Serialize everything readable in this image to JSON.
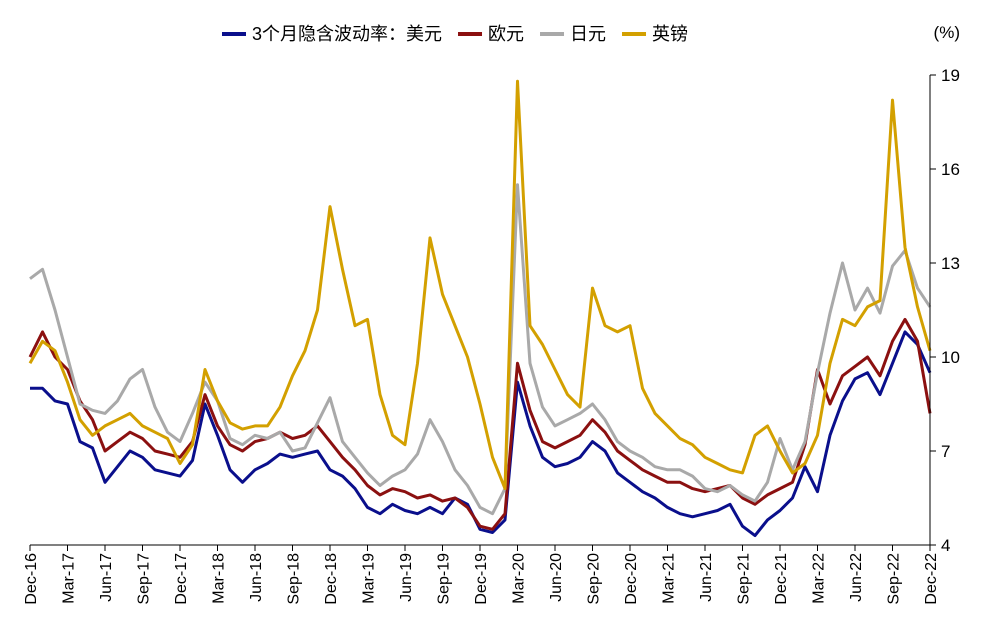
{
  "chart_data": {
    "type": "line",
    "title": "",
    "xlabel": "",
    "ylabel": "",
    "unit_label": "(%)",
    "y_axis_position": "right",
    "ylim": [
      4,
      19
    ],
    "y_ticks": [
      4,
      7,
      10,
      13,
      16,
      19
    ],
    "x_range": [
      "2016-12",
      "2022-12"
    ],
    "x_tick_labels": [
      "Dec-16",
      "Mar-17",
      "Jun-17",
      "Sep-17",
      "Dec-17",
      "Mar-18",
      "Jun-18",
      "Sep-18",
      "Dec-18",
      "Mar-19",
      "Jun-19",
      "Sep-19",
      "Dec-19",
      "Mar-20",
      "Jun-20",
      "Sep-20",
      "Dec-20",
      "Mar-21",
      "Jun-21",
      "Sep-21",
      "Dec-21",
      "Mar-22",
      "Jun-22",
      "Sep-22",
      "Dec-22"
    ],
    "legend_position": "top",
    "grid": false,
    "series": [
      {
        "name": "3个月隐含波动率：美元",
        "color": "#0a0f8c",
        "x": [
          "2016-12",
          "2017-01",
          "2017-02",
          "2017-03",
          "2017-04",
          "2017-05",
          "2017-06",
          "2017-07",
          "2017-08",
          "2017-09",
          "2017-10",
          "2017-11",
          "2017-12",
          "2018-01",
          "2018-02",
          "2018-03",
          "2018-04",
          "2018-05",
          "2018-06",
          "2018-07",
          "2018-08",
          "2018-09",
          "2018-10",
          "2018-11",
          "2018-12",
          "2019-01",
          "2019-02",
          "2019-03",
          "2019-04",
          "2019-05",
          "2019-06",
          "2019-07",
          "2019-08",
          "2019-09",
          "2019-10",
          "2019-11",
          "2019-12",
          "2020-01",
          "2020-02",
          "2020-03",
          "2020-04",
          "2020-05",
          "2020-06",
          "2020-07",
          "2020-08",
          "2020-09",
          "2020-10",
          "2020-11",
          "2020-12",
          "2021-01",
          "2021-02",
          "2021-03",
          "2021-04",
          "2021-05",
          "2021-06",
          "2021-07",
          "2021-08",
          "2021-09",
          "2021-10",
          "2021-11",
          "2021-12",
          "2022-01",
          "2022-02",
          "2022-03",
          "2022-04",
          "2022-05",
          "2022-06",
          "2022-07",
          "2022-08",
          "2022-09",
          "2022-10",
          "2022-11",
          "2022-12"
        ],
        "values": [
          9.0,
          9.0,
          8.6,
          8.5,
          7.3,
          7.1,
          6.0,
          6.5,
          7.0,
          6.8,
          6.4,
          6.3,
          6.2,
          6.7,
          8.5,
          7.5,
          6.4,
          6.0,
          6.4,
          6.6,
          6.9,
          6.8,
          6.9,
          7.0,
          6.4,
          6.2,
          5.8,
          5.2,
          5.0,
          5.3,
          5.1,
          5.0,
          5.2,
          5.0,
          5.5,
          5.3,
          4.5,
          4.4,
          4.8,
          9.2,
          7.8,
          6.8,
          6.5,
          6.6,
          6.8,
          7.3,
          7.0,
          6.3,
          6.0,
          5.7,
          5.5,
          5.2,
          5.0,
          4.9,
          5.0,
          5.1,
          5.3,
          4.6,
          4.3,
          4.8,
          5.1,
          5.5,
          6.5,
          5.7,
          7.5,
          8.6,
          9.3,
          9.5,
          8.8,
          9.8,
          10.8,
          10.4,
          9.5
        ]
      },
      {
        "name": "欧元",
        "color": "#8b1010",
        "x": [
          "2016-12",
          "2017-01",
          "2017-02",
          "2017-03",
          "2017-04",
          "2017-05",
          "2017-06",
          "2017-07",
          "2017-08",
          "2017-09",
          "2017-10",
          "2017-11",
          "2017-12",
          "2018-01",
          "2018-02",
          "2018-03",
          "2018-04",
          "2018-05",
          "2018-06",
          "2018-07",
          "2018-08",
          "2018-09",
          "2018-10",
          "2018-11",
          "2018-12",
          "2019-01",
          "2019-02",
          "2019-03",
          "2019-04",
          "2019-05",
          "2019-06",
          "2019-07",
          "2019-08",
          "2019-09",
          "2019-10",
          "2019-11",
          "2019-12",
          "2020-01",
          "2020-02",
          "2020-03",
          "2020-04",
          "2020-05",
          "2020-06",
          "2020-07",
          "2020-08",
          "2020-09",
          "2020-10",
          "2020-11",
          "2020-12",
          "2021-01",
          "2021-02",
          "2021-03",
          "2021-04",
          "2021-05",
          "2021-06",
          "2021-07",
          "2021-08",
          "2021-09",
          "2021-10",
          "2021-11",
          "2021-12",
          "2022-01",
          "2022-02",
          "2022-03",
          "2022-04",
          "2022-05",
          "2022-06",
          "2022-07",
          "2022-08",
          "2022-09",
          "2022-10",
          "2022-11",
          "2022-12"
        ],
        "values": [
          10.0,
          10.8,
          10.0,
          9.6,
          8.6,
          8.0,
          7.0,
          7.3,
          7.6,
          7.4,
          7.0,
          6.9,
          6.8,
          7.3,
          8.8,
          7.8,
          7.2,
          7.0,
          7.3,
          7.4,
          7.6,
          7.4,
          7.5,
          7.8,
          7.3,
          6.8,
          6.4,
          5.9,
          5.6,
          5.8,
          5.7,
          5.5,
          5.6,
          5.4,
          5.5,
          5.2,
          4.6,
          4.5,
          5.0,
          9.8,
          8.3,
          7.3,
          7.1,
          7.3,
          7.5,
          8.0,
          7.6,
          7.0,
          6.7,
          6.4,
          6.2,
          6.0,
          6.0,
          5.8,
          5.7,
          5.8,
          5.9,
          5.5,
          5.3,
          5.6,
          5.8,
          6.0,
          7.2,
          9.6,
          8.5,
          9.4,
          9.7,
          10.0,
          9.4,
          10.5,
          11.2,
          10.5,
          8.2
        ]
      },
      {
        "name": "日元",
        "color": "#a9a9a9",
        "x": [
          "2016-12",
          "2017-01",
          "2017-02",
          "2017-03",
          "2017-04",
          "2017-05",
          "2017-06",
          "2017-07",
          "2017-08",
          "2017-09",
          "2017-10",
          "2017-11",
          "2017-12",
          "2018-01",
          "2018-02",
          "2018-03",
          "2018-04",
          "2018-05",
          "2018-06",
          "2018-07",
          "2018-08",
          "2018-09",
          "2018-10",
          "2018-11",
          "2018-12",
          "2019-01",
          "2019-02",
          "2019-03",
          "2019-04",
          "2019-05",
          "2019-06",
          "2019-07",
          "2019-08",
          "2019-09",
          "2019-10",
          "2019-11",
          "2019-12",
          "2020-01",
          "2020-02",
          "2020-03",
          "2020-04",
          "2020-05",
          "2020-06",
          "2020-07",
          "2020-08",
          "2020-09",
          "2020-10",
          "2020-11",
          "2020-12",
          "2021-01",
          "2021-02",
          "2021-03",
          "2021-04",
          "2021-05",
          "2021-06",
          "2021-07",
          "2021-08",
          "2021-09",
          "2021-10",
          "2021-11",
          "2021-12",
          "2022-01",
          "2022-02",
          "2022-03",
          "2022-04",
          "2022-05",
          "2022-06",
          "2022-07",
          "2022-08",
          "2022-09",
          "2022-10",
          "2022-11",
          "2022-12"
        ],
        "values": [
          12.5,
          12.8,
          11.5,
          10.0,
          8.5,
          8.3,
          8.2,
          8.6,
          9.3,
          9.6,
          8.4,
          7.6,
          7.3,
          8.2,
          9.2,
          8.6,
          7.4,
          7.2,
          7.5,
          7.4,
          7.6,
          7.0,
          7.1,
          7.9,
          8.7,
          7.3,
          6.8,
          6.3,
          5.9,
          6.2,
          6.4,
          6.9,
          8.0,
          7.3,
          6.4,
          5.9,
          5.2,
          5.0,
          5.8,
          15.5,
          9.8,
          8.4,
          7.8,
          8.0,
          8.2,
          8.5,
          8.0,
          7.3,
          7.0,
          6.8,
          6.5,
          6.4,
          6.4,
          6.2,
          5.8,
          5.7,
          5.9,
          5.6,
          5.4,
          6.0,
          7.4,
          6.4,
          7.3,
          9.5,
          11.4,
          13.0,
          11.5,
          12.2,
          11.4,
          12.9,
          13.4,
          12.2,
          11.6
        ]
      },
      {
        "name": "英镑",
        "color": "#d3a000",
        "x": [
          "2016-12",
          "2017-01",
          "2017-02",
          "2017-03",
          "2017-04",
          "2017-05",
          "2017-06",
          "2017-07",
          "2017-08",
          "2017-09",
          "2017-10",
          "2017-11",
          "2017-12",
          "2018-01",
          "2018-02",
          "2018-03",
          "2018-04",
          "2018-05",
          "2018-06",
          "2018-07",
          "2018-08",
          "2018-09",
          "2018-10",
          "2018-11",
          "2018-12",
          "2019-01",
          "2019-02",
          "2019-03",
          "2019-04",
          "2019-05",
          "2019-06",
          "2019-07",
          "2019-08",
          "2019-09",
          "2019-10",
          "2019-11",
          "2019-12",
          "2020-01",
          "2020-02",
          "2020-03",
          "2020-04",
          "2020-05",
          "2020-06",
          "2020-07",
          "2020-08",
          "2020-09",
          "2020-10",
          "2020-11",
          "2020-12",
          "2021-01",
          "2021-02",
          "2021-03",
          "2021-04",
          "2021-05",
          "2021-06",
          "2021-07",
          "2021-08",
          "2021-09",
          "2021-10",
          "2021-11",
          "2021-12",
          "2022-01",
          "2022-02",
          "2022-03",
          "2022-04",
          "2022-05",
          "2022-06",
          "2022-07",
          "2022-08",
          "2022-09",
          "2022-10",
          "2022-11",
          "2022-12"
        ],
        "values": [
          9.8,
          10.5,
          10.2,
          9.2,
          8.0,
          7.5,
          7.8,
          8.0,
          8.2,
          7.8,
          7.6,
          7.4,
          6.6,
          7.2,
          9.6,
          8.6,
          7.9,
          7.7,
          7.8,
          7.8,
          8.4,
          9.4,
          10.2,
          11.5,
          14.8,
          12.8,
          11.0,
          11.2,
          8.8,
          7.5,
          7.2,
          9.8,
          13.8,
          12.0,
          11.0,
          10.0,
          8.5,
          6.8,
          5.8,
          18.8,
          11.0,
          10.4,
          9.6,
          8.8,
          8.4,
          12.2,
          11.0,
          10.8,
          11.0,
          9.0,
          8.2,
          7.8,
          7.4,
          7.2,
          6.8,
          6.6,
          6.4,
          6.3,
          7.5,
          7.8,
          7.0,
          6.3,
          6.6,
          7.5,
          9.8,
          11.2,
          11.0,
          11.6,
          11.8,
          18.2,
          13.5,
          11.6,
          10.2
        ]
      }
    ]
  }
}
